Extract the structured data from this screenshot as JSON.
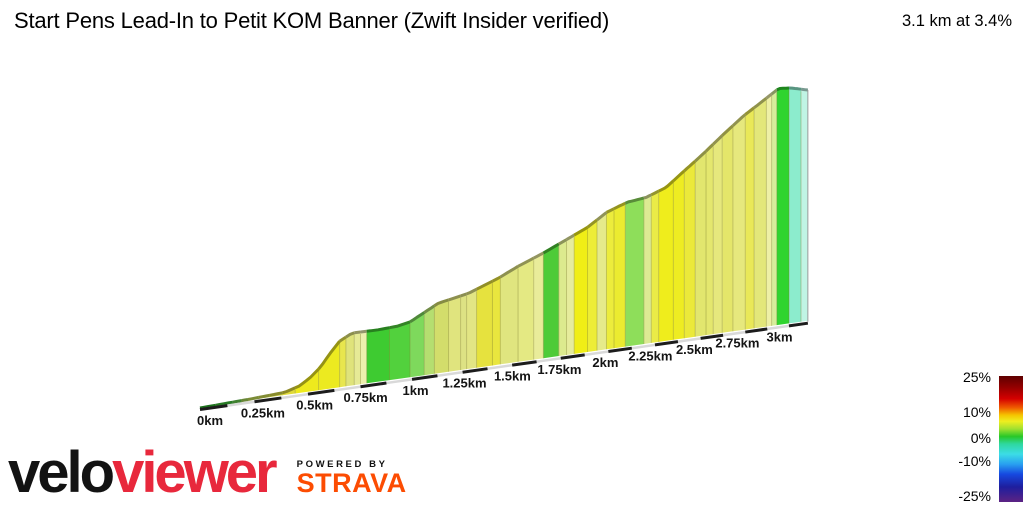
{
  "header": {
    "title": "Start Pens Lead-In to Petit KOM Banner (Zwift Insider verified)",
    "stat": "3.1 km at 3.4%"
  },
  "chart_data": {
    "type": "area",
    "title": "Start Pens Lead-In to Petit KOM Banner (Zwift Insider verified)",
    "subtitle": "3.1 km at 3.4%",
    "x_unit": "km",
    "total_distance_km": 3.1,
    "average_gradient_pct": 3.4,
    "end_km": 3.11,
    "x_tick_step_km": 0.25,
    "x_tick_labels": [
      "0km",
      "0.25km",
      "0.5km",
      "0.75km",
      "1km",
      "1.25km",
      "1.5km",
      "1.75km",
      "2km",
      "2.25km",
      "2.5km",
      "2.75km",
      "3km"
    ],
    "elevation_profile": [
      [
        0.0,
        0
      ],
      [
        0.23,
        0.8
      ],
      [
        0.39,
        1.6
      ],
      [
        0.46,
        3.5
      ],
      [
        0.51,
        6.5
      ],
      [
        0.56,
        10.6
      ],
      [
        0.6,
        15.5
      ],
      [
        0.65,
        20.8
      ],
      [
        0.71,
        23.6
      ],
      [
        0.84,
        23.4
      ],
      [
        0.93,
        23.8
      ],
      [
        0.99,
        24.9
      ],
      [
        1.13,
        31.4
      ],
      [
        1.28,
        33.9
      ],
      [
        1.43,
        38.7
      ],
      [
        1.53,
        42.7
      ],
      [
        1.66,
        47.0
      ],
      [
        1.74,
        50.0
      ],
      [
        1.89,
        55.6
      ],
      [
        1.99,
        61.0
      ],
      [
        2.1,
        64.2
      ],
      [
        2.2,
        65.1
      ],
      [
        2.31,
        68.3
      ],
      [
        2.41,
        74.5
      ],
      [
        2.52,
        81.2
      ],
      [
        2.63,
        88.4
      ],
      [
        2.74,
        95.1
      ],
      [
        2.85,
        100.5
      ],
      [
        2.94,
        105.0
      ],
      [
        3.01,
        104.5
      ],
      [
        3.11,
        102.5
      ]
    ],
    "segments": [
      {
        "km": 0.0,
        "color": "#2db32d"
      },
      {
        "km": 0.07,
        "color": "#3fc43a"
      },
      {
        "km": 0.15,
        "color": "#66cc4d"
      },
      {
        "km": 0.19,
        "color": "#a6d455"
      },
      {
        "km": 0.22,
        "color": "#c4dc55"
      },
      {
        "km": 0.27,
        "color": "#cfdf52"
      },
      {
        "km": 0.32,
        "color": "#d8dc48"
      },
      {
        "km": 0.38,
        "color": "#e0da3a"
      },
      {
        "km": 0.44,
        "color": "#eeea1d"
      },
      {
        "km": 0.55,
        "color": "#ecea20"
      },
      {
        "km": 0.65,
        "color": "#e8e64e"
      },
      {
        "km": 0.68,
        "color": "#dfe37b"
      },
      {
        "km": 0.72,
        "color": "#e6ea96"
      },
      {
        "km": 0.75,
        "color": "#edf0ae"
      },
      {
        "km": 0.78,
        "color": "#3ecb31"
      },
      {
        "km": 0.89,
        "color": "#52d13d"
      },
      {
        "km": 0.99,
        "color": "#7ed95c"
      },
      {
        "km": 1.06,
        "color": "#b5de70"
      },
      {
        "km": 1.11,
        "color": "#d3dd6b"
      },
      {
        "km": 1.18,
        "color": "#e0e47e"
      },
      {
        "km": 1.24,
        "color": "#dde284"
      },
      {
        "km": 1.27,
        "color": "#e2e584"
      },
      {
        "km": 1.32,
        "color": "#e6e23e"
      },
      {
        "km": 1.4,
        "color": "#e9e63e"
      },
      {
        "km": 1.44,
        "color": "#e0e57f"
      },
      {
        "km": 1.53,
        "color": "#e4e983"
      },
      {
        "km": 1.61,
        "color": "#e9ec9a"
      },
      {
        "km": 1.66,
        "color": "#4ecb38"
      },
      {
        "km": 1.74,
        "color": "#dcea8e"
      },
      {
        "km": 1.78,
        "color": "#e6ec9c"
      },
      {
        "km": 1.82,
        "color": "#f0ee16"
      },
      {
        "km": 1.89,
        "color": "#eded37"
      },
      {
        "km": 1.94,
        "color": "#e5ea8a"
      },
      {
        "km": 1.99,
        "color": "#ecec3c"
      },
      {
        "km": 2.03,
        "color": "#ebeb30"
      },
      {
        "km": 2.09,
        "color": "#8ede5a"
      },
      {
        "km": 2.19,
        "color": "#dcea93"
      },
      {
        "km": 2.23,
        "color": "#eaeb47"
      },
      {
        "km": 2.27,
        "color": "#efed1c"
      },
      {
        "km": 2.35,
        "color": "#eeec22"
      },
      {
        "km": 2.41,
        "color": "#ebe93a"
      },
      {
        "km": 2.47,
        "color": "#e2e66e"
      },
      {
        "km": 2.53,
        "color": "#e4e76e"
      },
      {
        "km": 2.57,
        "color": "#e6e87d"
      },
      {
        "km": 2.62,
        "color": "#e4e66a"
      },
      {
        "km": 2.68,
        "color": "#e6e87d"
      },
      {
        "km": 2.75,
        "color": "#e9e858"
      },
      {
        "km": 2.8,
        "color": "#e3e77a"
      },
      {
        "km": 2.87,
        "color": "#eef0a6"
      },
      {
        "km": 2.9,
        "color": "#d7ed9a"
      },
      {
        "km": 2.93,
        "color": "#2fd42f"
      },
      {
        "km": 3.0,
        "color": "#8ceccd"
      },
      {
        "km": 3.07,
        "color": "#c0f4e4"
      }
    ],
    "gradient_legend": {
      "labels": [
        {
          "text": "25%",
          "pos": 0.008
        },
        {
          "text": "10%",
          "pos": 0.286
        },
        {
          "text": "0%",
          "pos": 0.49
        },
        {
          "text": "-10%",
          "pos": 0.675
        },
        {
          "text": "-25%",
          "pos": 0.955
        }
      ],
      "stops": [
        {
          "pct": 0,
          "color": "#5e0000"
        },
        {
          "pct": 9,
          "color": "#940000"
        },
        {
          "pct": 18,
          "color": "#d40000"
        },
        {
          "pct": 25,
          "color": "#ef5a00"
        },
        {
          "pct": 31,
          "color": "#f5c400"
        },
        {
          "pct": 36,
          "color": "#eeee20"
        },
        {
          "pct": 42,
          "color": "#a0e030"
        },
        {
          "pct": 48,
          "color": "#28c828"
        },
        {
          "pct": 54,
          "color": "#2ed8a0"
        },
        {
          "pct": 62,
          "color": "#3cdce6"
        },
        {
          "pct": 70,
          "color": "#28a0f0"
        },
        {
          "pct": 78,
          "color": "#1648e0"
        },
        {
          "pct": 88,
          "color": "#1e1e9e"
        },
        {
          "pct": 100,
          "color": "#5c2383"
        }
      ]
    },
    "axis_colors": {
      "tape_dark": "#1c1c1c",
      "tape_light": "#d9d9d9",
      "tick_text": "#141414"
    }
  },
  "footer": {
    "brand_black": "velo",
    "brand_red": "viewer",
    "powered_by": "POWERED BY",
    "strava": "STRAVA"
  }
}
